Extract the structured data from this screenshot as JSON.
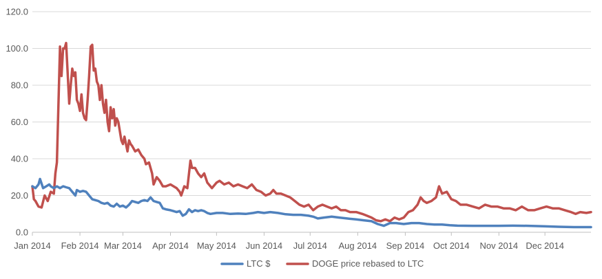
{
  "chart_data": {
    "type": "line",
    "title": "",
    "xlabel": "",
    "ylabel": "",
    "ylim": [
      0,
      120
    ],
    "y_ticks": [
      "0.0",
      "20.0",
      "40.0",
      "60.0",
      "80.0",
      "100.0",
      "120.0"
    ],
    "x_ticks": [
      "Jan 2014",
      "Feb 2014",
      "Mar 2014",
      "Apr 2014",
      "May 2014",
      "Jun 2014",
      "Jul 2014",
      "Aug 2014",
      "Sep 2014",
      "Oct 2014",
      "Nov 2014",
      "Dec 2014"
    ],
    "grid": "horizontal",
    "legend_position": "bottom",
    "series": [
      {
        "name": "LTC $",
        "color": "#4f81bd",
        "points": [
          [
            "2014-01-01",
            25
          ],
          [
            "2014-01-03",
            24
          ],
          [
            "2014-01-05",
            26
          ],
          [
            "2014-01-06",
            29
          ],
          [
            "2014-01-08",
            24
          ],
          [
            "2014-01-10",
            25
          ],
          [
            "2014-01-12",
            26
          ],
          [
            "2014-01-13",
            25
          ],
          [
            "2014-01-15",
            24
          ],
          [
            "2014-01-17",
            25
          ],
          [
            "2014-01-19",
            24
          ],
          [
            "2014-01-21",
            25
          ],
          [
            "2014-01-23",
            24.5
          ],
          [
            "2014-01-25",
            24
          ],
          [
            "2014-01-27",
            22
          ],
          [
            "2014-01-29",
            20
          ],
          [
            "2014-01-30",
            23
          ],
          [
            "2014-02-01",
            22
          ],
          [
            "2014-02-03",
            22.5
          ],
          [
            "2014-02-05",
            22
          ],
          [
            "2014-02-07",
            20
          ],
          [
            "2014-02-09",
            18
          ],
          [
            "2014-02-11",
            17.5
          ],
          [
            "2014-02-13",
            17
          ],
          [
            "2014-02-15",
            16
          ],
          [
            "2014-02-17",
            15.5
          ],
          [
            "2014-02-19",
            16
          ],
          [
            "2014-02-21",
            14.5
          ],
          [
            "2014-02-23",
            14
          ],
          [
            "2014-02-25",
            15.5
          ],
          [
            "2014-02-27",
            14
          ],
          [
            "2014-03-01",
            14.5
          ],
          [
            "2014-03-03",
            13.5
          ],
          [
            "2014-03-05",
            15
          ],
          [
            "2014-03-07",
            17
          ],
          [
            "2014-03-09",
            16.5
          ],
          [
            "2014-03-11",
            16
          ],
          [
            "2014-03-13",
            17
          ],
          [
            "2014-03-15",
            17.5
          ],
          [
            "2014-03-17",
            17
          ],
          [
            "2014-03-19",
            19
          ],
          [
            "2014-03-21",
            17
          ],
          [
            "2014-03-23",
            16.5
          ],
          [
            "2014-03-25",
            16
          ],
          [
            "2014-03-27",
            13
          ],
          [
            "2014-03-29",
            12.5
          ],
          [
            "2014-04-01",
            12
          ],
          [
            "2014-04-03",
            11.5
          ],
          [
            "2014-04-05",
            11
          ],
          [
            "2014-04-07",
            11.5
          ],
          [
            "2014-04-09",
            9
          ],
          [
            "2014-04-11",
            10
          ],
          [
            "2014-04-13",
            12.5
          ],
          [
            "2014-04-15",
            11
          ],
          [
            "2014-04-17",
            12
          ],
          [
            "2014-04-19",
            11.5
          ],
          [
            "2014-04-21",
            12
          ],
          [
            "2014-04-23",
            11.5
          ],
          [
            "2014-04-25",
            10.5
          ],
          [
            "2014-04-27",
            10
          ],
          [
            "2014-05-01",
            10.5
          ],
          [
            "2014-05-05",
            10.5
          ],
          [
            "2014-05-10",
            10
          ],
          [
            "2014-05-15",
            10.2
          ],
          [
            "2014-05-20",
            10
          ],
          [
            "2014-05-25",
            10.5
          ],
          [
            "2014-05-28",
            11
          ],
          [
            "2014-06-01",
            10.5
          ],
          [
            "2014-06-05",
            11
          ],
          [
            "2014-06-10",
            10.5
          ],
          [
            "2014-06-15",
            9.8
          ],
          [
            "2014-06-20",
            9.5
          ],
          [
            "2014-06-25",
            9.5
          ],
          [
            "2014-06-30",
            9
          ],
          [
            "2014-07-03",
            8.5
          ],
          [
            "2014-07-06",
            7.5
          ],
          [
            "2014-07-10",
            8
          ],
          [
            "2014-07-15",
            8.5
          ],
          [
            "2014-07-20",
            8
          ],
          [
            "2014-07-25",
            7.5
          ],
          [
            "2014-07-31",
            7
          ],
          [
            "2014-08-05",
            6.5
          ],
          [
            "2014-08-10",
            6
          ],
          [
            "2014-08-14",
            4.5
          ],
          [
            "2014-08-18",
            3.5
          ],
          [
            "2014-08-22",
            5
          ],
          [
            "2014-08-26",
            5
          ],
          [
            "2014-08-31",
            4.5
          ],
          [
            "2014-09-05",
            5
          ],
          [
            "2014-09-10",
            5
          ],
          [
            "2014-09-15",
            4.5
          ],
          [
            "2014-09-20",
            4.2
          ],
          [
            "2014-09-25",
            4.2
          ],
          [
            "2014-09-30",
            3.8
          ],
          [
            "2014-10-05",
            3.6
          ],
          [
            "2014-10-15",
            3.5
          ],
          [
            "2014-10-25",
            3.5
          ],
          [
            "2014-11-01",
            3.5
          ],
          [
            "2014-11-10",
            3.6
          ],
          [
            "2014-11-20",
            3.5
          ],
          [
            "2014-11-30",
            3.3
          ],
          [
            "2014-12-10",
            3
          ],
          [
            "2014-12-20",
            2.8
          ],
          [
            "2014-12-31",
            2.8
          ]
        ]
      },
      {
        "name": "DOGE price rebased to LTC",
        "color": "#c0504d",
        "points": [
          [
            "2014-01-01",
            25
          ],
          [
            "2014-01-02",
            18
          ],
          [
            "2014-01-03",
            17
          ],
          [
            "2014-01-05",
            14
          ],
          [
            "2014-01-07",
            13.5
          ],
          [
            "2014-01-09",
            20
          ],
          [
            "2014-01-11",
            17
          ],
          [
            "2014-01-13",
            22
          ],
          [
            "2014-01-15",
            21
          ],
          [
            "2014-01-16",
            32
          ],
          [
            "2014-01-17",
            38
          ],
          [
            "2014-01-19",
            101
          ],
          [
            "2014-01-20",
            85
          ],
          [
            "2014-01-21",
            100
          ],
          [
            "2014-01-22",
            100
          ],
          [
            "2014-01-23",
            103
          ],
          [
            "2014-01-25",
            70
          ],
          [
            "2014-01-26",
            80
          ],
          [
            "2014-01-27",
            89
          ],
          [
            "2014-01-28",
            85
          ],
          [
            "2014-01-29",
            87
          ],
          [
            "2014-01-30",
            72
          ],
          [
            "2014-01-31",
            70
          ],
          [
            "2014-02-01",
            66
          ],
          [
            "2014-02-02",
            75
          ],
          [
            "2014-02-03",
            65
          ],
          [
            "2014-02-04",
            62
          ],
          [
            "2014-02-05",
            61
          ],
          [
            "2014-02-06",
            72
          ],
          [
            "2014-02-07",
            85
          ],
          [
            "2014-02-08",
            101
          ],
          [
            "2014-02-09",
            102
          ],
          [
            "2014-02-10",
            88
          ],
          [
            "2014-02-11",
            89
          ],
          [
            "2014-02-12",
            82
          ],
          [
            "2014-02-13",
            80
          ],
          [
            "2014-02-14",
            72
          ],
          [
            "2014-02-15",
            80
          ],
          [
            "2014-02-16",
            70
          ],
          [
            "2014-02-17",
            65
          ],
          [
            "2014-02-18",
            72
          ],
          [
            "2014-02-19",
            60
          ],
          [
            "2014-02-20",
            55
          ],
          [
            "2014-02-21",
            68
          ],
          [
            "2014-02-22",
            62
          ],
          [
            "2014-02-23",
            67
          ],
          [
            "2014-02-24",
            58
          ],
          [
            "2014-02-25",
            62
          ],
          [
            "2014-02-26",
            60
          ],
          [
            "2014-02-27",
            55
          ],
          [
            "2014-02-28",
            50
          ],
          [
            "2014-03-01",
            48
          ],
          [
            "2014-03-02",
            52
          ],
          [
            "2014-03-03",
            48
          ],
          [
            "2014-03-04",
            44
          ],
          [
            "2014-03-05",
            50
          ],
          [
            "2014-03-06",
            48
          ],
          [
            "2014-03-07",
            47
          ],
          [
            "2014-03-09",
            44
          ],
          [
            "2014-03-11",
            45
          ],
          [
            "2014-03-13",
            42
          ],
          [
            "2014-03-15",
            40
          ],
          [
            "2014-03-16",
            37
          ],
          [
            "2014-03-18",
            38
          ],
          [
            "2014-03-20",
            32
          ],
          [
            "2014-03-21",
            26
          ],
          [
            "2014-03-23",
            30
          ],
          [
            "2014-03-25",
            28
          ],
          [
            "2014-03-27",
            25
          ],
          [
            "2014-03-29",
            25
          ],
          [
            "2014-04-01",
            26
          ],
          [
            "2014-04-03",
            25
          ],
          [
            "2014-04-05",
            24
          ],
          [
            "2014-04-07",
            22
          ],
          [
            "2014-04-08",
            20
          ],
          [
            "2014-04-10",
            25
          ],
          [
            "2014-04-12",
            24
          ],
          [
            "2014-04-14",
            39
          ],
          [
            "2014-04-15",
            35
          ],
          [
            "2014-04-17",
            35
          ],
          [
            "2014-04-19",
            32
          ],
          [
            "2014-04-21",
            30
          ],
          [
            "2014-04-23",
            32
          ],
          [
            "2014-04-25",
            27
          ],
          [
            "2014-04-28",
            24
          ],
          [
            "2014-05-01",
            27
          ],
          [
            "2014-05-03",
            28
          ],
          [
            "2014-05-06",
            26
          ],
          [
            "2014-05-09",
            27
          ],
          [
            "2014-05-12",
            25
          ],
          [
            "2014-05-15",
            26
          ],
          [
            "2014-05-18",
            25
          ],
          [
            "2014-05-21",
            24
          ],
          [
            "2014-05-24",
            26
          ],
          [
            "2014-05-27",
            23
          ],
          [
            "2014-05-30",
            22
          ],
          [
            "2014-06-02",
            20
          ],
          [
            "2014-06-05",
            21
          ],
          [
            "2014-06-07",
            23
          ],
          [
            "2014-06-09",
            21
          ],
          [
            "2014-06-12",
            21
          ],
          [
            "2014-06-15",
            20
          ],
          [
            "2014-06-18",
            19
          ],
          [
            "2014-06-21",
            17
          ],
          [
            "2014-06-24",
            15
          ],
          [
            "2014-06-27",
            14
          ],
          [
            "2014-06-30",
            15
          ],
          [
            "2014-07-03",
            12
          ],
          [
            "2014-07-06",
            14
          ],
          [
            "2014-07-09",
            15
          ],
          [
            "2014-07-12",
            14
          ],
          [
            "2014-07-15",
            13
          ],
          [
            "2014-07-18",
            14
          ],
          [
            "2014-07-21",
            12
          ],
          [
            "2014-07-24",
            12
          ],
          [
            "2014-07-27",
            11
          ],
          [
            "2014-07-31",
            11
          ],
          [
            "2014-08-04",
            10
          ],
          [
            "2014-08-07",
            9
          ],
          [
            "2014-08-10",
            8
          ],
          [
            "2014-08-13",
            6.5
          ],
          [
            "2014-08-16",
            6
          ],
          [
            "2014-08-19",
            7
          ],
          [
            "2014-08-22",
            6
          ],
          [
            "2014-08-25",
            8
          ],
          [
            "2014-08-28",
            7
          ],
          [
            "2014-08-31",
            8
          ],
          [
            "2014-09-03",
            11
          ],
          [
            "2014-09-06",
            12
          ],
          [
            "2014-09-09",
            15
          ],
          [
            "2014-09-11",
            19
          ],
          [
            "2014-09-13",
            17
          ],
          [
            "2014-09-15",
            16
          ],
          [
            "2014-09-18",
            17
          ],
          [
            "2014-09-21",
            19
          ],
          [
            "2014-09-23",
            25
          ],
          [
            "2014-09-25",
            21
          ],
          [
            "2014-09-28",
            22
          ],
          [
            "2014-10-01",
            18
          ],
          [
            "2014-10-04",
            17
          ],
          [
            "2014-10-07",
            15
          ],
          [
            "2014-10-11",
            15
          ],
          [
            "2014-10-15",
            14
          ],
          [
            "2014-10-19",
            13
          ],
          [
            "2014-10-23",
            15
          ],
          [
            "2014-10-27",
            14
          ],
          [
            "2014-10-31",
            14
          ],
          [
            "2014-11-04",
            13
          ],
          [
            "2014-11-08",
            13
          ],
          [
            "2014-11-12",
            12
          ],
          [
            "2014-11-16",
            14
          ],
          [
            "2014-11-20",
            12
          ],
          [
            "2014-11-24",
            12
          ],
          [
            "2014-11-28",
            13
          ],
          [
            "2014-12-02",
            14
          ],
          [
            "2014-12-06",
            13
          ],
          [
            "2014-12-10",
            13
          ],
          [
            "2014-12-14",
            12
          ],
          [
            "2014-12-18",
            11
          ],
          [
            "2014-12-21",
            10
          ],
          [
            "2014-12-24",
            11
          ],
          [
            "2014-12-28",
            10.5
          ],
          [
            "2014-12-31",
            11
          ]
        ]
      }
    ]
  }
}
